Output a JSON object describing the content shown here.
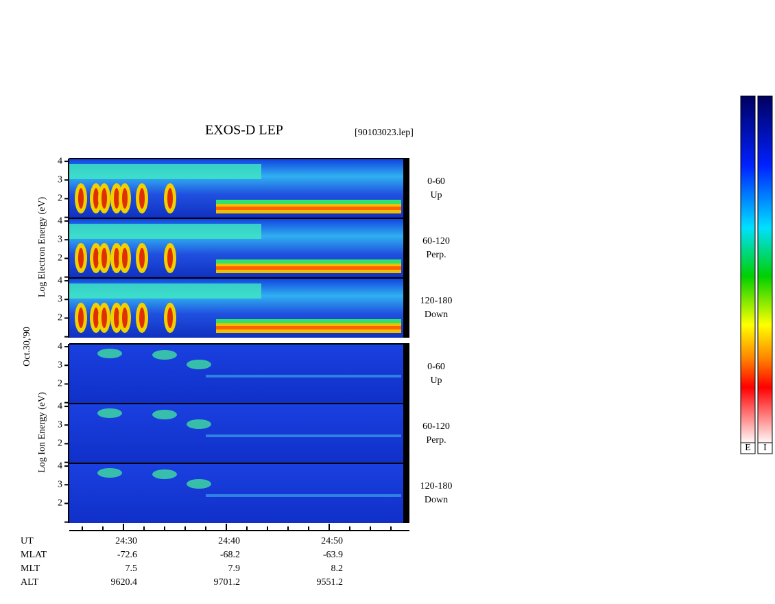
{
  "title": "EXOS-D LEP",
  "file": "[90103023.lep]",
  "date": "Oct.30,'90",
  "electron_label": "Log  Electron  Energy (eV)",
  "ion_label": "Log  Ion  Energy (eV)",
  "ylim": [
    0.95,
    4.15
  ],
  "yticks": [
    2,
    3,
    4
  ],
  "panels": [
    {
      "species": "electron",
      "lines": [
        "0-60",
        "Up"
      ]
    },
    {
      "species": "electron",
      "lines": [
        "60-120",
        "Perp."
      ]
    },
    {
      "species": "electron",
      "lines": [
        "120-180",
        "Down"
      ]
    },
    {
      "species": "ion",
      "lines": [
        "0-60",
        "Up"
      ]
    },
    {
      "species": "ion",
      "lines": [
        "60-120",
        "Perp."
      ]
    },
    {
      "species": "ion",
      "lines": [
        "120-180",
        "Down"
      ]
    }
  ],
  "time_ticks": [
    "24:30",
    "24:40",
    "24:50"
  ],
  "rows": [
    {
      "name": "UT",
      "values": [
        "24:30",
        "24:40",
        "24:50"
      ]
    },
    {
      "name": "MLAT",
      "values": [
        "-72.6",
        "-68.2",
        "-63.9"
      ]
    },
    {
      "name": "MLT",
      "values": [
        "7.5",
        "7.9",
        "8.2"
      ]
    },
    {
      "name": "ALT",
      "values": [
        "9620.4",
        "9701.2",
        "9551.2"
      ]
    }
  ],
  "colorbars": [
    "E",
    "I"
  ]
}
